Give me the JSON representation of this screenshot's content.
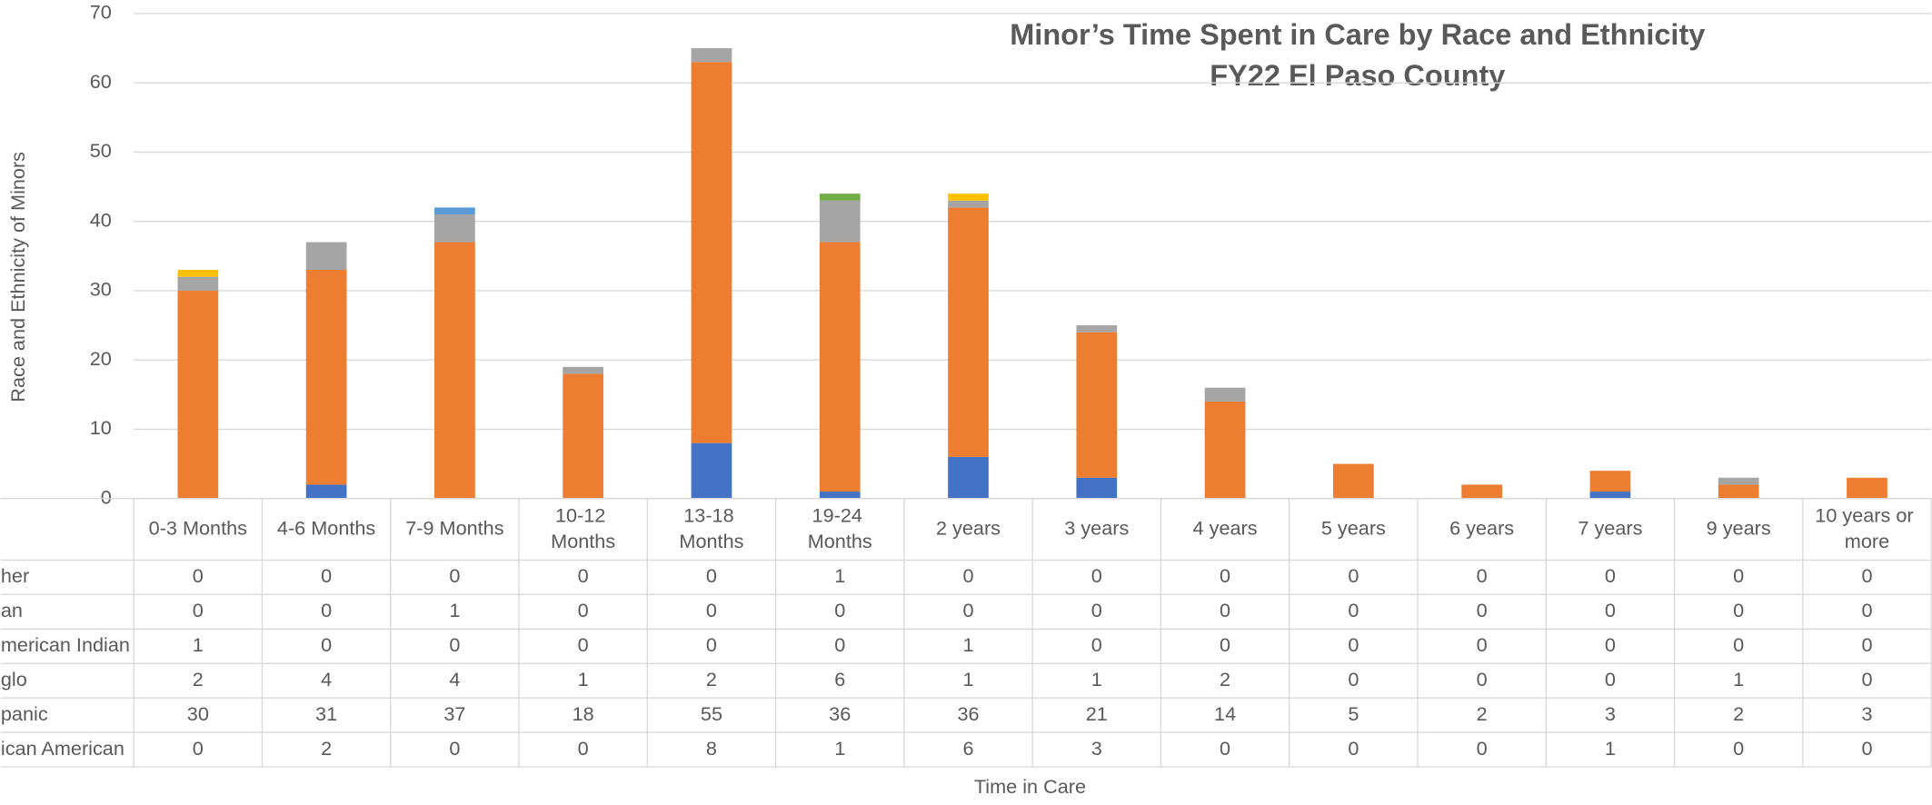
{
  "chart_data": {
    "type": "stacked_bar",
    "title": "Minor’s Time Spent in Care by Race and Ethnicity",
    "subtitle": "FY22 El Paso County",
    "x_label": "Time in Care",
    "y_label": "Race and Ethnicity of Minors",
    "categories": [
      "0-3 Months",
      "4-6 Months",
      "7-9 Months",
      "10-12 Months",
      "13-18 Months",
      "19-24 Months",
      "2 years",
      "3 years",
      "4 years",
      "5 years",
      "6 years",
      "7 years",
      "9 years",
      "10 years or more"
    ],
    "series": [
      {
        "name": "ican American",
        "color": "#4472c4",
        "values": [
          0,
          2,
          0,
          0,
          8,
          1,
          6,
          3,
          0,
          0,
          0,
          1,
          0,
          0
        ]
      },
      {
        "name": "panic",
        "color": "#ed7d31",
        "values": [
          30,
          31,
          37,
          18,
          55,
          36,
          36,
          21,
          14,
          5,
          2,
          3,
          2,
          3
        ]
      },
      {
        "name": "glo",
        "color": "#a5a5a5",
        "values": [
          2,
          4,
          4,
          1,
          2,
          6,
          1,
          1,
          2,
          0,
          0,
          0,
          1,
          0
        ]
      },
      {
        "name": "merican Indian",
        "color": "#ffc000",
        "values": [
          1,
          0,
          0,
          0,
          0,
          0,
          1,
          0,
          0,
          0,
          0,
          0,
          0,
          0
        ]
      },
      {
        "name": "an",
        "color": "#5b9bd5",
        "values": [
          0,
          0,
          1,
          0,
          0,
          0,
          0,
          0,
          0,
          0,
          0,
          0,
          0,
          0
        ]
      },
      {
        "name": "her",
        "color": "#70ad47",
        "values": [
          0,
          0,
          0,
          0,
          0,
          1,
          0,
          0,
          0,
          0,
          0,
          0,
          0,
          0
        ]
      }
    ],
    "ylim": [
      0,
      70
    ],
    "yticks": [
      0,
      10,
      20,
      30,
      40,
      50,
      60,
      70
    ],
    "grid": true,
    "data_table": true
  }
}
